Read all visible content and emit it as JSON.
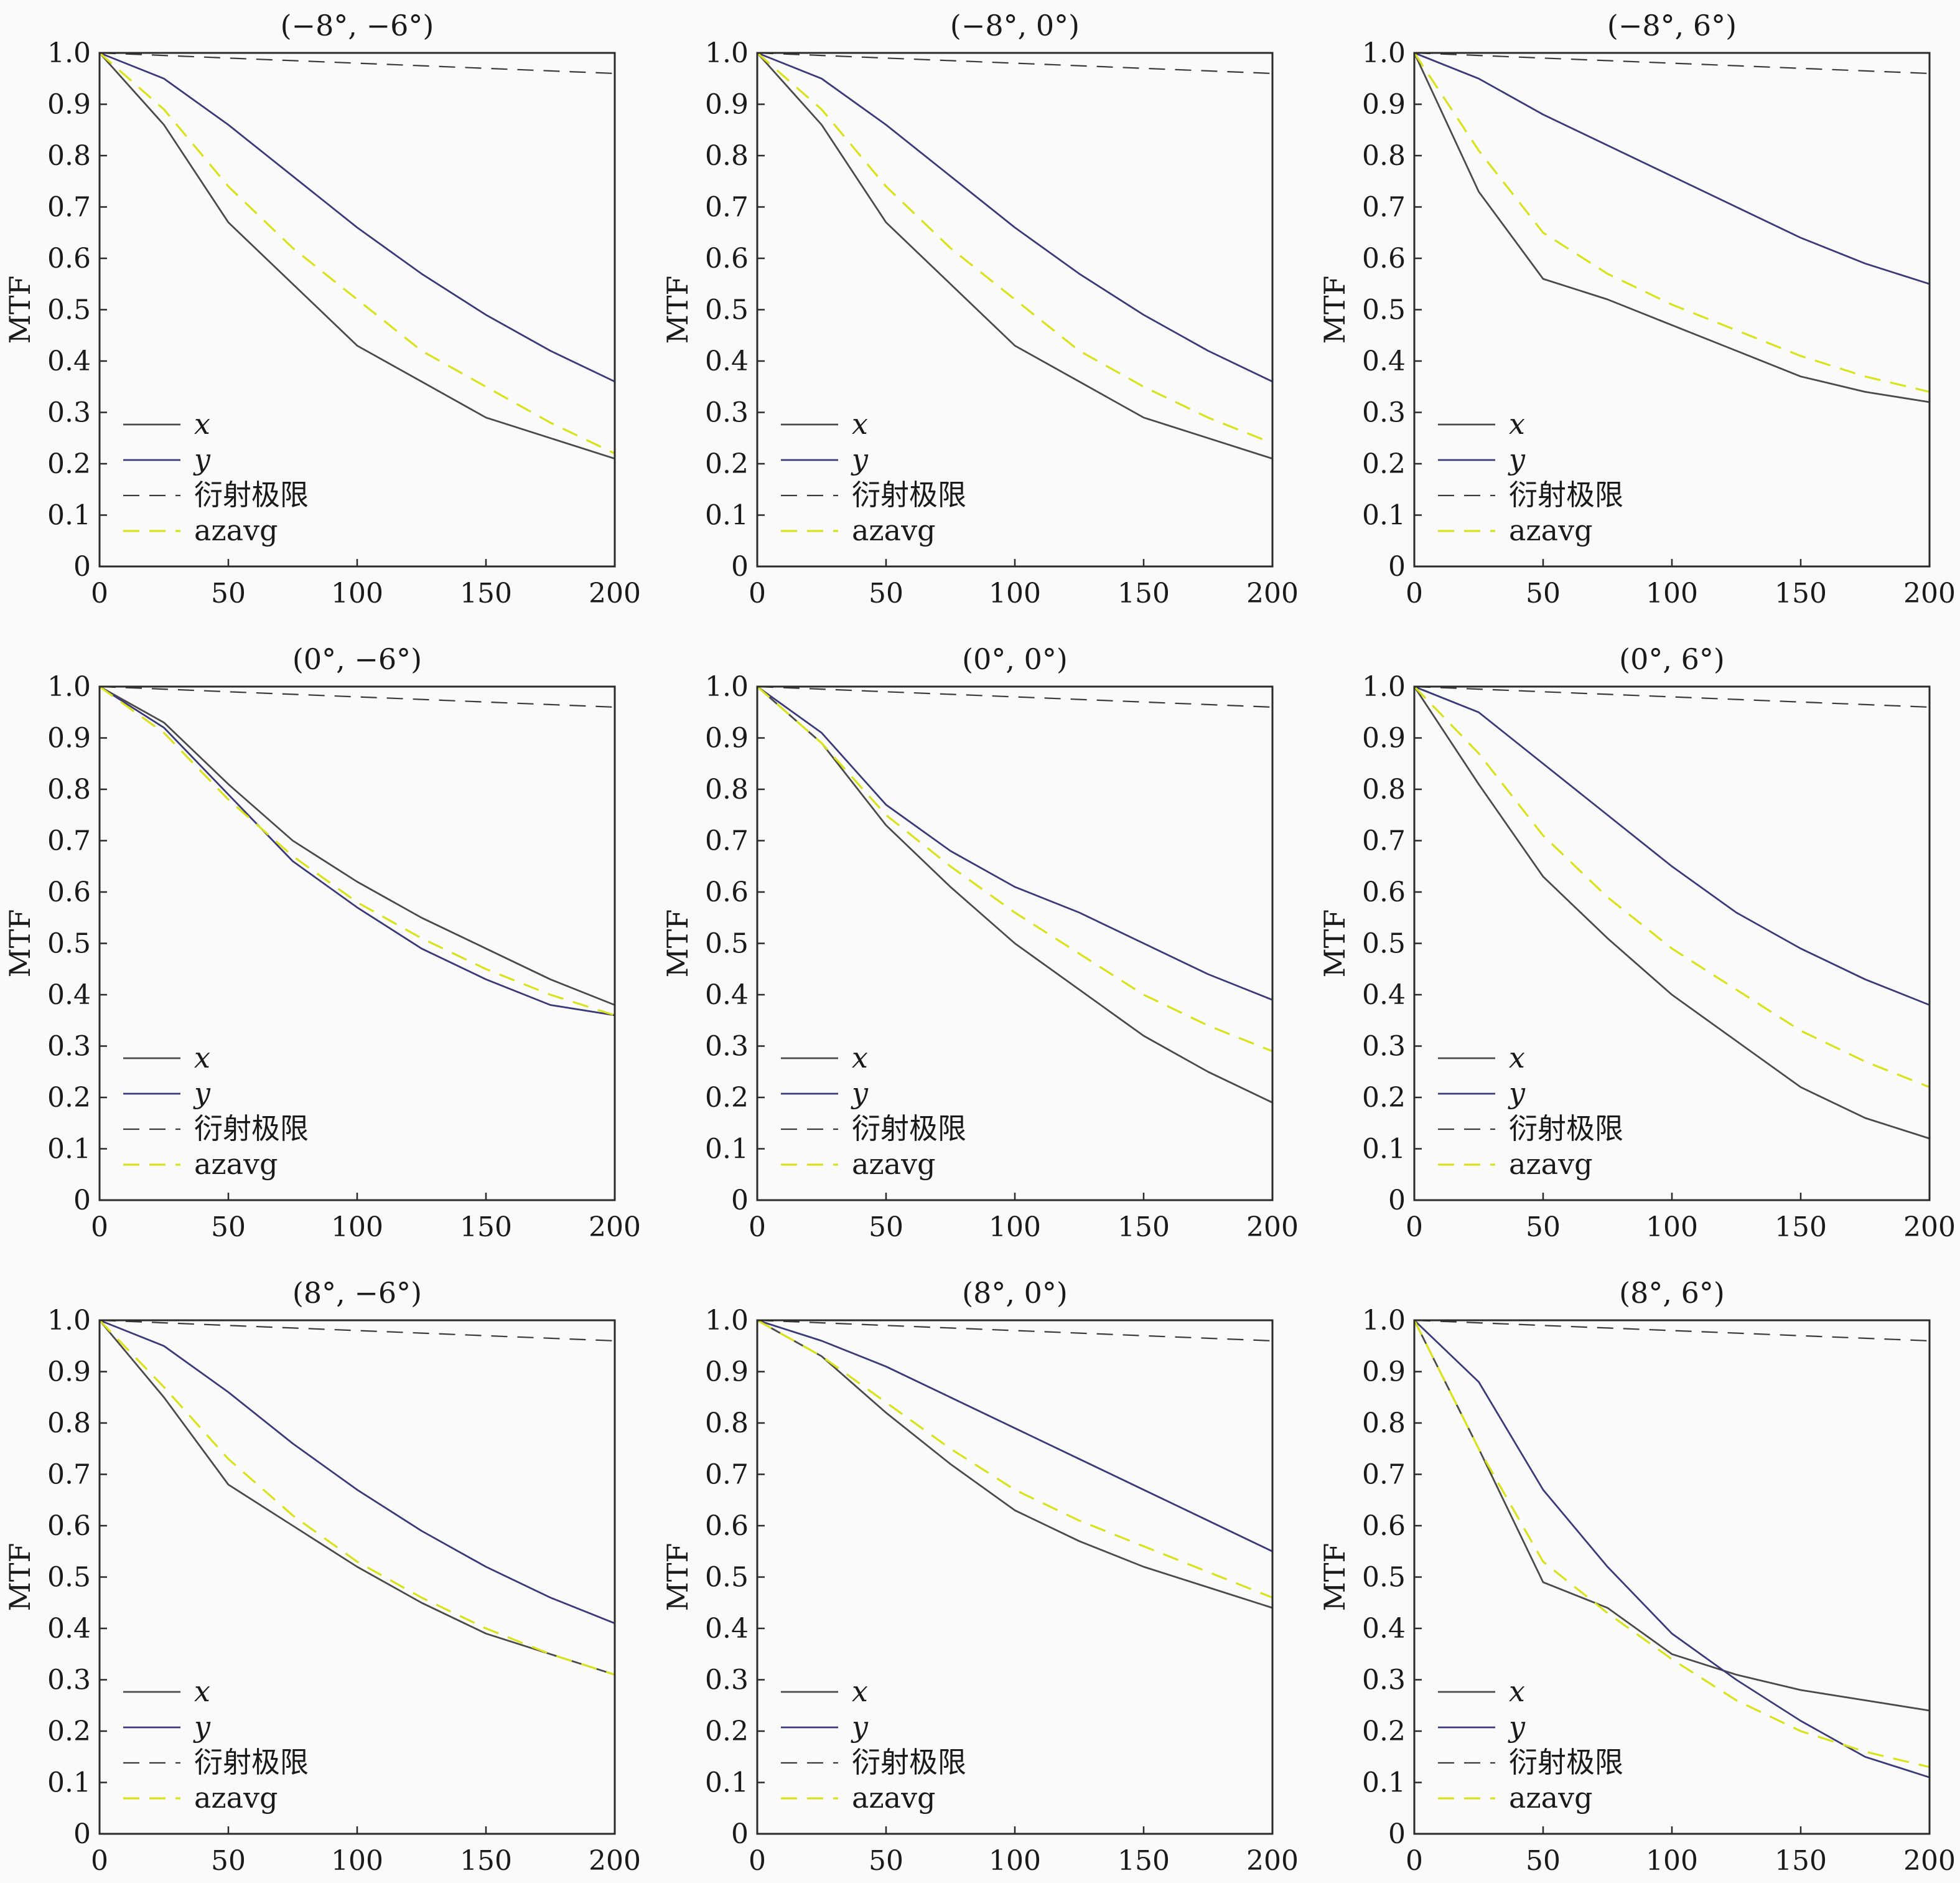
{
  "chart_data": {
    "type": "line",
    "layout": "3x3 grid",
    "ylabel": "MTF",
    "xlim": [
      0,
      200
    ],
    "ylim": [
      0,
      1.0
    ],
    "xticks": [
      "0",
      "50",
      "100",
      "150",
      "200"
    ],
    "yticks": [
      "0",
      "0.1",
      "0.2",
      "0.3",
      "0.4",
      "0.5",
      "0.6",
      "0.7",
      "0.8",
      "0.9",
      "1.0"
    ],
    "legend": [
      "x",
      "y",
      "衍射极限",
      "azavg"
    ],
    "legend_position": "lower-left",
    "colors": {
      "x": "#4a4a4a",
      "y": "#3a3a7a",
      "diffraction": "#3a3a3a",
      "azavg": "#d9e21a"
    },
    "x": [
      0,
      25,
      50,
      75,
      100,
      125,
      150,
      175,
      200
    ],
    "panels": [
      {
        "title": "(−8°, −6°)",
        "series": [
          {
            "name": "x",
            "values": [
              1.0,
              0.86,
              0.67,
              0.55,
              0.43,
              0.36,
              0.29,
              0.25,
              0.21
            ]
          },
          {
            "name": "y",
            "values": [
              1.0,
              0.95,
              0.86,
              0.76,
              0.66,
              0.57,
              0.49,
              0.42,
              0.36
            ]
          },
          {
            "name": "衍射极限",
            "values": [
              1.0,
              0.995,
              0.99,
              0.985,
              0.98,
              0.975,
              0.97,
              0.965,
              0.96
            ]
          },
          {
            "name": "azavg",
            "values": [
              1.0,
              0.89,
              0.74,
              0.62,
              0.52,
              0.42,
              0.35,
              0.28,
              0.22
            ]
          }
        ]
      },
      {
        "title": "(−8°, 0°)",
        "series": [
          {
            "name": "x",
            "values": [
              1.0,
              0.86,
              0.67,
              0.55,
              0.43,
              0.36,
              0.29,
              0.25,
              0.21
            ]
          },
          {
            "name": "y",
            "values": [
              1.0,
              0.95,
              0.86,
              0.76,
              0.66,
              0.57,
              0.49,
              0.42,
              0.36
            ]
          },
          {
            "name": "衍射极限",
            "values": [
              1.0,
              0.995,
              0.99,
              0.985,
              0.98,
              0.975,
              0.97,
              0.965,
              0.96
            ]
          },
          {
            "name": "azavg",
            "values": [
              1.0,
              0.89,
              0.74,
              0.62,
              0.52,
              0.42,
              0.35,
              0.29,
              0.24
            ]
          }
        ]
      },
      {
        "title": "(−8°, 6°)",
        "series": [
          {
            "name": "x",
            "values": [
              1.0,
              0.73,
              0.56,
              0.52,
              0.47,
              0.42,
              0.37,
              0.34,
              0.32
            ]
          },
          {
            "name": "y",
            "values": [
              1.0,
              0.95,
              0.88,
              0.82,
              0.76,
              0.7,
              0.64,
              0.59,
              0.55
            ]
          },
          {
            "name": "衍射极限",
            "values": [
              1.0,
              0.995,
              0.99,
              0.985,
              0.98,
              0.975,
              0.97,
              0.965,
              0.96
            ]
          },
          {
            "name": "azavg",
            "values": [
              1.0,
              0.81,
              0.65,
              0.57,
              0.51,
              0.46,
              0.41,
              0.37,
              0.34
            ]
          }
        ]
      },
      {
        "title": "(0°, −6°)",
        "series": [
          {
            "name": "x",
            "values": [
              1.0,
              0.93,
              0.81,
              0.7,
              0.62,
              0.55,
              0.49,
              0.43,
              0.38
            ]
          },
          {
            "name": "y",
            "values": [
              1.0,
              0.92,
              0.79,
              0.66,
              0.57,
              0.49,
              0.43,
              0.38,
              0.36
            ]
          },
          {
            "name": "衍射极限",
            "values": [
              1.0,
              0.995,
              0.99,
              0.985,
              0.98,
              0.975,
              0.97,
              0.965,
              0.96
            ]
          },
          {
            "name": "azavg",
            "values": [
              1.0,
              0.91,
              0.78,
              0.67,
              0.58,
              0.51,
              0.45,
              0.4,
              0.36
            ]
          }
        ]
      },
      {
        "title": "(0°, 0°)",
        "series": [
          {
            "name": "x",
            "values": [
              1.0,
              0.89,
              0.73,
              0.61,
              0.5,
              0.41,
              0.32,
              0.25,
              0.19
            ]
          },
          {
            "name": "y",
            "values": [
              1.0,
              0.91,
              0.77,
              0.68,
              0.61,
              0.56,
              0.5,
              0.44,
              0.39
            ]
          },
          {
            "name": "衍射极限",
            "values": [
              1.0,
              0.995,
              0.99,
              0.985,
              0.98,
              0.975,
              0.97,
              0.965,
              0.96
            ]
          },
          {
            "name": "azavg",
            "values": [
              1.0,
              0.89,
              0.75,
              0.65,
              0.56,
              0.48,
              0.4,
              0.34,
              0.29
            ]
          }
        ]
      },
      {
        "title": "(0°, 6°)",
        "series": [
          {
            "name": "x",
            "values": [
              1.0,
              0.81,
              0.63,
              0.51,
              0.4,
              0.31,
              0.22,
              0.16,
              0.12
            ]
          },
          {
            "name": "y",
            "values": [
              1.0,
              0.95,
              0.85,
              0.75,
              0.65,
              0.56,
              0.49,
              0.43,
              0.38
            ]
          },
          {
            "name": "衍射极限",
            "values": [
              1.0,
              0.995,
              0.99,
              0.985,
              0.98,
              0.975,
              0.97,
              0.965,
              0.96
            ]
          },
          {
            "name": "azavg",
            "values": [
              1.0,
              0.87,
              0.71,
              0.59,
              0.49,
              0.41,
              0.33,
              0.27,
              0.22
            ]
          }
        ]
      },
      {
        "title": "(8°, −6°)",
        "series": [
          {
            "name": "x",
            "values": [
              1.0,
              0.85,
              0.68,
              0.6,
              0.52,
              0.45,
              0.39,
              0.35,
              0.31
            ]
          },
          {
            "name": "y",
            "values": [
              1.0,
              0.95,
              0.86,
              0.76,
              0.67,
              0.59,
              0.52,
              0.46,
              0.41
            ]
          },
          {
            "name": "衍射极限",
            "values": [
              1.0,
              0.995,
              0.99,
              0.985,
              0.98,
              0.975,
              0.97,
              0.965,
              0.96
            ]
          },
          {
            "name": "azavg",
            "values": [
              1.0,
              0.87,
              0.73,
              0.62,
              0.53,
              0.46,
              0.4,
              0.35,
              0.31
            ]
          }
        ]
      },
      {
        "title": "(8°, 0°)",
        "series": [
          {
            "name": "x",
            "values": [
              1.0,
              0.93,
              0.82,
              0.72,
              0.63,
              0.57,
              0.52,
              0.48,
              0.44
            ]
          },
          {
            "name": "y",
            "values": [
              1.0,
              0.96,
              0.91,
              0.85,
              0.79,
              0.73,
              0.67,
              0.61,
              0.55
            ]
          },
          {
            "name": "衍射极限",
            "values": [
              1.0,
              0.995,
              0.99,
              0.985,
              0.98,
              0.975,
              0.97,
              0.965,
              0.96
            ]
          },
          {
            "name": "azavg",
            "values": [
              1.0,
              0.93,
              0.84,
              0.75,
              0.67,
              0.61,
              0.56,
              0.51,
              0.46
            ]
          }
        ]
      },
      {
        "title": "(8°, 6°)",
        "series": [
          {
            "name": "x",
            "values": [
              1.0,
              0.75,
              0.49,
              0.44,
              0.35,
              0.31,
              0.28,
              0.26,
              0.24
            ]
          },
          {
            "name": "y",
            "values": [
              1.0,
              0.88,
              0.67,
              0.52,
              0.39,
              0.3,
              0.22,
              0.15,
              0.11
            ]
          },
          {
            "name": "衍射极限",
            "values": [
              1.0,
              0.995,
              0.99,
              0.985,
              0.98,
              0.975,
              0.97,
              0.965,
              0.96
            ]
          },
          {
            "name": "azavg",
            "values": [
              1.0,
              0.75,
              0.53,
              0.43,
              0.34,
              0.26,
              0.2,
              0.16,
              0.13
            ]
          }
        ]
      }
    ]
  }
}
